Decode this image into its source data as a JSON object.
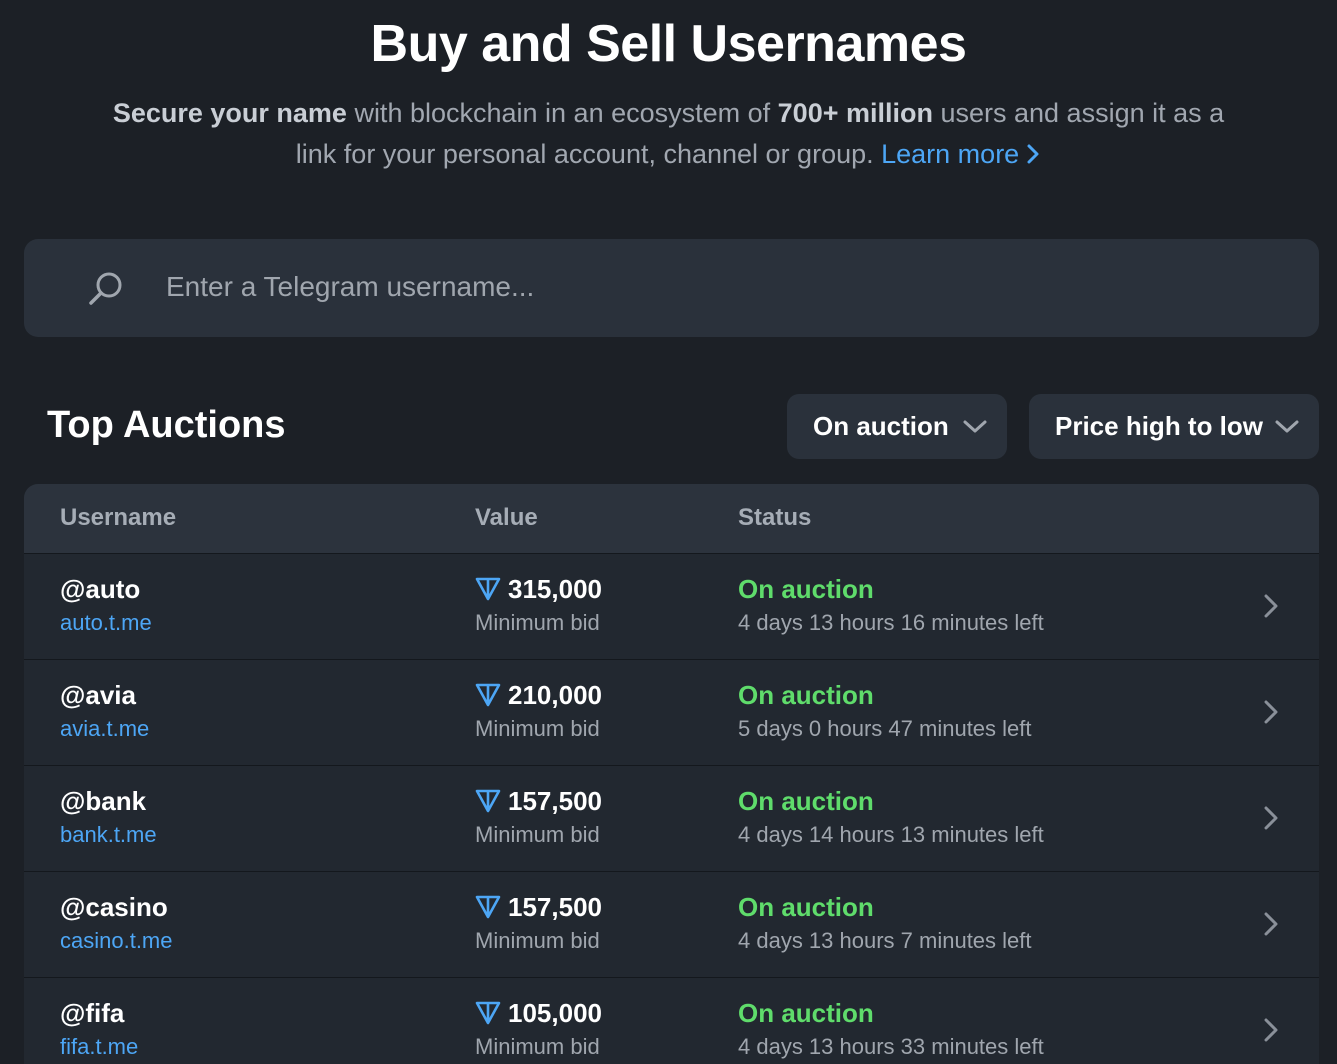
{
  "hero": {
    "title": "Buy and Sell Usernames",
    "subtitle_bold_1": "Secure your name",
    "subtitle_text_1": " with blockchain in an ecosystem of ",
    "subtitle_bold_2": "700+ million",
    "subtitle_text_2": " users and assign it as a link for your personal account, channel or group. ",
    "learn_more": "Learn more",
    "learn_more_icon": "chevron-right-icon"
  },
  "search": {
    "placeholder": "Enter a Telegram username...",
    "icon": "search-icon"
  },
  "section": {
    "title": "Top Auctions"
  },
  "filters": {
    "status_label": "On auction",
    "sort_label": "Price high to low",
    "icon": "chevron-down-icon"
  },
  "table": {
    "headers": {
      "username": "Username",
      "value": "Value",
      "status": "Status"
    },
    "rows": [
      {
        "username": "@auto",
        "link": "auto.t.me",
        "value": "315,000",
        "value_sub": "Minimum bid",
        "status": "On auction",
        "time_left": "4 days 13 hours 16 minutes left"
      },
      {
        "username": "@avia",
        "link": "avia.t.me",
        "value": "210,000",
        "value_sub": "Minimum bid",
        "status": "On auction",
        "time_left": "5 days 0 hours 47 minutes left"
      },
      {
        "username": "@bank",
        "link": "bank.t.me",
        "value": "157,500",
        "value_sub": "Minimum bid",
        "status": "On auction",
        "time_left": "4 days 14 hours 13 minutes left"
      },
      {
        "username": "@casino",
        "link": "casino.t.me",
        "value": "157,500",
        "value_sub": "Minimum bid",
        "status": "On auction",
        "time_left": "4 days 13 hours 7 minutes left"
      },
      {
        "username": "@fifa",
        "link": "fifa.t.me",
        "value": "105,000",
        "value_sub": "Minimum bid",
        "status": "On auction",
        "time_left": "4 days 13 hours 33 minutes left"
      }
    ]
  },
  "colors": {
    "background": "#1c2026",
    "surface": "#2a313b",
    "accent_blue": "#4da6f5",
    "status_green": "#5fdc6b",
    "muted_text": "#a0a6ae"
  }
}
